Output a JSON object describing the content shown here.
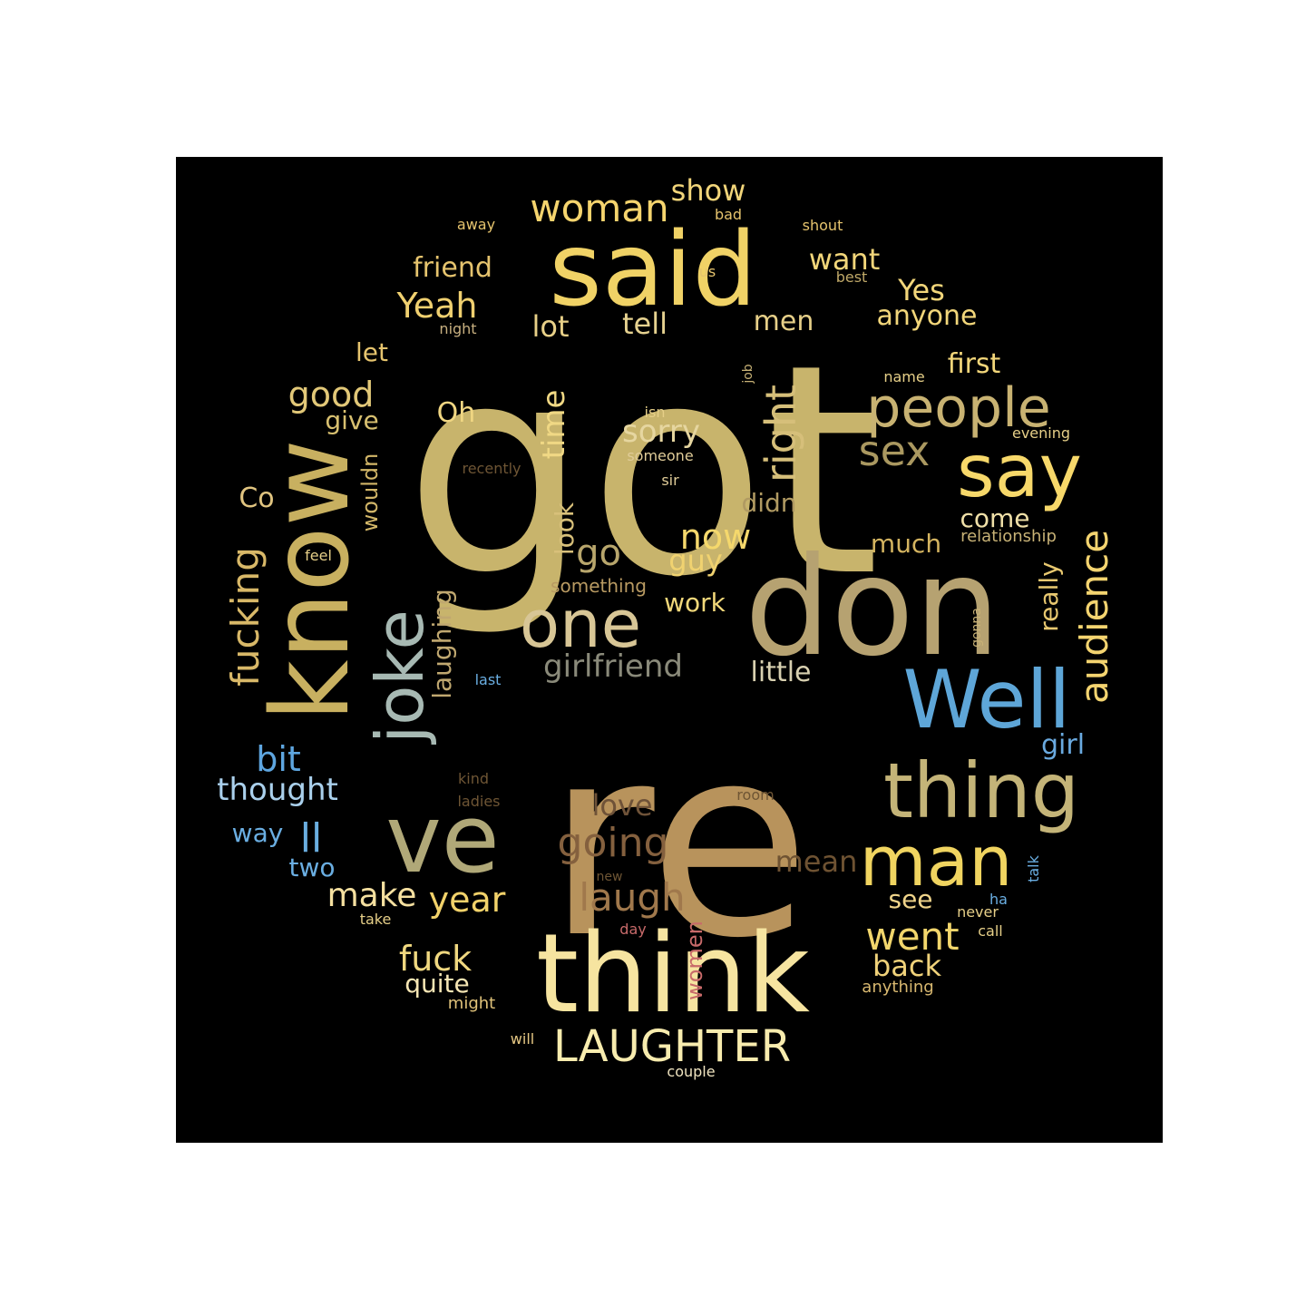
{
  "wordcloud": {
    "background": "#000000",
    "words": [
      {
        "text": "got",
        "color": "#c8b46c"
      },
      {
        "text": "re",
        "color": "#b8935c"
      },
      {
        "text": "don",
        "color": "#b6a271"
      },
      {
        "text": "said",
        "color": "#f0d266"
      },
      {
        "text": "know",
        "color": "#c8b060"
      },
      {
        "text": "think",
        "color": "#f6e4a0"
      },
      {
        "text": "ve",
        "color": "#b0a878"
      },
      {
        "text": "Well",
        "color": "#5ea6d8"
      },
      {
        "text": "thing",
        "color": "#c4b478"
      },
      {
        "text": "say",
        "color": "#f7d86a"
      },
      {
        "text": "man",
        "color": "#f0d460"
      },
      {
        "text": "joke",
        "color": "#a7b9b3"
      },
      {
        "text": "one",
        "color": "#d8c696"
      },
      {
        "text": "people",
        "color": "#c8b272"
      },
      {
        "text": "LAUGHTER",
        "color": "#f8ecae"
      },
      {
        "text": "woman",
        "color": "#f5d46e"
      },
      {
        "text": "fucking",
        "color": "#d8b868"
      },
      {
        "text": "audience",
        "color": "#f4d470"
      },
      {
        "text": "sex",
        "color": "#aa9860"
      },
      {
        "text": "right",
        "color": "#d6bf7a"
      },
      {
        "text": "going",
        "color": "#84603e"
      },
      {
        "text": "laugh",
        "color": "#a0784c"
      },
      {
        "text": "went",
        "color": "#f2d66c"
      },
      {
        "text": "Yeah",
        "color": "#f0d070"
      },
      {
        "text": "girlfriend",
        "color": "#8a8a7a"
      },
      {
        "text": "fuck",
        "color": "#f0d880"
      },
      {
        "text": "year",
        "color": "#f2d26a"
      },
      {
        "text": "now",
        "color": "#f5d86c"
      },
      {
        "text": "go",
        "color": "#b8a66c"
      },
      {
        "text": "good",
        "color": "#e2c878"
      },
      {
        "text": "bit",
        "color": "#5ea6e0"
      },
      {
        "text": "thought",
        "color": "#aad0ec"
      },
      {
        "text": "ll",
        "color": "#6aaee0"
      },
      {
        "text": "love",
        "color": "#6e5238"
      },
      {
        "text": "mean",
        "color": "#6e5232"
      },
      {
        "text": "make",
        "color": "#f5e0a0"
      },
      {
        "text": "back",
        "color": "#f0d27a"
      },
      {
        "text": "show",
        "color": "#f2d57a"
      },
      {
        "text": "sorry",
        "color": "#e6d6a0"
      },
      {
        "text": "time",
        "color": "#f0d884"
      },
      {
        "text": "little",
        "color": "#d8d0b0"
      },
      {
        "text": "laughing",
        "color": "#c0a870"
      },
      {
        "text": "want",
        "color": "#f2d67a"
      },
      {
        "text": "Yes",
        "color": "#f2d67a"
      },
      {
        "text": "friend",
        "color": "#e6c46e"
      },
      {
        "text": "tell",
        "color": "#e6d290"
      },
      {
        "text": "lot",
        "color": "#e8d088"
      },
      {
        "text": "men",
        "color": "#e6cf88"
      },
      {
        "text": "anyone",
        "color": "#f2d67a"
      },
      {
        "text": "first",
        "color": "#f2d67a"
      },
      {
        "text": "let",
        "color": "#e6c46e"
      },
      {
        "text": "give",
        "color": "#d8c070"
      },
      {
        "text": "Co",
        "color": "#e0c480"
      },
      {
        "text": "Oh",
        "color": "#f0d682"
      },
      {
        "text": "look",
        "color": "#d8c07a"
      },
      {
        "text": "didn",
        "color": "#b09a62"
      },
      {
        "text": "guy",
        "color": "#f0d270"
      },
      {
        "text": "much",
        "color": "#d4b460"
      },
      {
        "text": "come",
        "color": "#f0e0a8"
      },
      {
        "text": "really",
        "color": "#e8c870"
      },
      {
        "text": "girl",
        "color": "#6aaae0"
      },
      {
        "text": "work",
        "color": "#f2d87a"
      },
      {
        "text": "wouldn",
        "color": "#d2b668"
      },
      {
        "text": "way",
        "color": "#6aaee2"
      },
      {
        "text": "two",
        "color": "#6aaee2"
      },
      {
        "text": "see",
        "color": "#f0d48a"
      },
      {
        "text": "quite",
        "color": "#f6e6b4"
      },
      {
        "text": "women",
        "color": "#c86a6a"
      },
      {
        "text": "something",
        "color": "#b89a62"
      },
      {
        "text": "relationship",
        "color": "#c8b276"
      },
      {
        "text": "anything",
        "color": "#d8b870"
      },
      {
        "text": "might",
        "color": "#e0c27a"
      },
      {
        "text": "will",
        "color": "#e6c884"
      },
      {
        "text": "couple",
        "color": "#f0e4c0"
      },
      {
        "text": "away",
        "color": "#e6c46e"
      },
      {
        "text": "bad",
        "color": "#e6c46e"
      },
      {
        "text": "shout",
        "color": "#e6c46e"
      },
      {
        "text": "us",
        "color": "#e6c46e"
      },
      {
        "text": "best",
        "color": "#bfa868"
      },
      {
        "text": "night",
        "color": "#c8b080"
      },
      {
        "text": "isn",
        "color": "#e6cf88"
      },
      {
        "text": "someone",
        "color": "#e0cc98"
      },
      {
        "text": "sir",
        "color": "#e0cc98"
      },
      {
        "text": "recently",
        "color": "#6e5534"
      },
      {
        "text": "job",
        "color": "#c8b276"
      },
      {
        "text": "name",
        "color": "#e6cf88"
      },
      {
        "text": "evening",
        "color": "#e6cf88"
      },
      {
        "text": "feel",
        "color": "#e6cf88"
      },
      {
        "text": "gonna",
        "color": "#c8b276"
      },
      {
        "text": "last",
        "color": "#6aaee2"
      },
      {
        "text": "kind",
        "color": "#6e5534"
      },
      {
        "text": "ladies",
        "color": "#6e5534"
      },
      {
        "text": "room",
        "color": "#6e5534"
      },
      {
        "text": "new",
        "color": "#6e5534"
      },
      {
        "text": "talk",
        "color": "#6aaee2"
      },
      {
        "text": "ha",
        "color": "#6aaee2"
      },
      {
        "text": "never",
        "color": "#e6cf88"
      },
      {
        "text": "call",
        "color": "#e6cf88"
      },
      {
        "text": "day",
        "color": "#c86a6a"
      },
      {
        "text": "take",
        "color": "#e6cf88"
      }
    ]
  }
}
